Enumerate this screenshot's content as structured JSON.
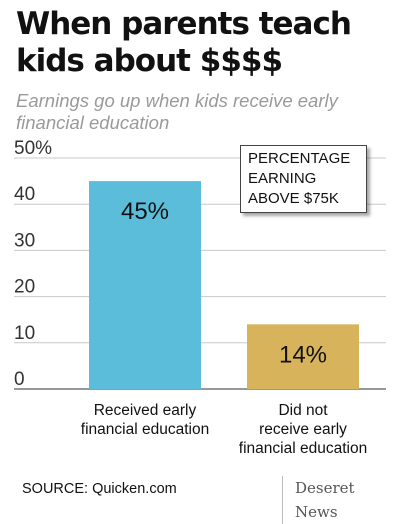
{
  "title": "When parents teach kids about $$$$",
  "subtitle": "Earnings go up when kids receive early financial education",
  "chart_data": {
    "type": "bar",
    "title": "When parents teach kids about $$$$",
    "subtitle": "Earnings go up when kids receive early financial education",
    "annotation": "PERCENTAGE\nEARNING\nABOVE $75K",
    "categories": [
      "Received early\nfinancial education",
      "Did not\nreceive early\nfinancial education"
    ],
    "values": [
      45,
      14
    ],
    "data_labels": [
      "45%",
      "14%"
    ],
    "colors": [
      "#5bbdd9",
      "#d7b45c"
    ],
    "ylim": [
      0,
      50
    ],
    "yticks": [
      0,
      10,
      20,
      30,
      40,
      50
    ],
    "ytick_labels": [
      "0",
      "10",
      "20",
      "30",
      "40",
      "50%"
    ],
    "grid": "horizontal",
    "legend": "none",
    "xlabel": "",
    "ylabel": ""
  },
  "source": "SOURCE: Quicken.com",
  "brand": "Deseret News"
}
